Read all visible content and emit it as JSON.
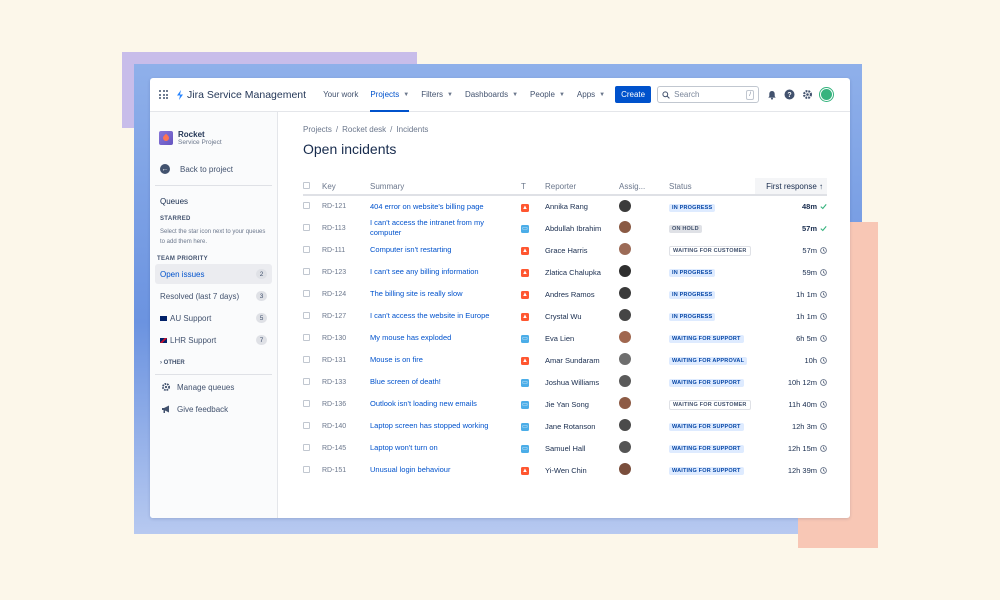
{
  "colors": {
    "accent": "#0052cc",
    "incident": "#ff5630",
    "support": "#4bade8"
  },
  "nav": {
    "product": "Jira Service Management",
    "items": [
      {
        "label": "Your work",
        "chevron": false,
        "active": false
      },
      {
        "label": "Projects",
        "chevron": true,
        "active": true
      },
      {
        "label": "Filters",
        "chevron": true,
        "active": false
      },
      {
        "label": "Dashboards",
        "chevron": true,
        "active": false
      },
      {
        "label": "People",
        "chevron": true,
        "active": false
      },
      {
        "label": "Apps",
        "chevron": true,
        "active": false
      }
    ],
    "create_label": "Create",
    "search_placeholder": "Search",
    "search_shortcut": "/"
  },
  "sidebar": {
    "project_name": "Rocket",
    "project_type": "Service Project",
    "back_label": "Back to project",
    "queues_heading": "Queues",
    "starred_heading": "STARRED",
    "starred_help": "Select the star icon next to your queues to add them here.",
    "team_heading": "TEAM PRIORITY",
    "queues": [
      {
        "label": "Open issues",
        "count": "2",
        "flag": "",
        "active": true
      },
      {
        "label": "Resolved (last 7 days)",
        "count": "3",
        "flag": "",
        "active": false
      },
      {
        "label": "AU Support",
        "count": "5",
        "flag": "au",
        "active": false
      },
      {
        "label": "LHR Support",
        "count": "7",
        "flag": "uk",
        "active": false
      }
    ],
    "other_label": "OTHER",
    "manage_label": "Manage queues",
    "feedback_label": "Give feedback"
  },
  "main": {
    "breadcrumb": [
      "Projects",
      "Rocket desk",
      "Incidents"
    ],
    "title": "Open incidents",
    "columns": {
      "key": "Key",
      "summary": "Summary",
      "type": "T",
      "reporter": "Reporter",
      "assignee": "Assig...",
      "status": "Status",
      "first_response": "First response"
    },
    "rows": [
      {
        "key": "RD-121",
        "summary": "404 error on website's billing page",
        "type": "incident",
        "reporter": "Annika Rang",
        "avatar": "#3b3b3b",
        "status": "IN PROGRESS",
        "status_kind": "inprogress",
        "time": "48m",
        "bold": true,
        "check": true
      },
      {
        "key": "RD-113",
        "summary": "I can't access the intranet from my computer",
        "type": "support",
        "reporter": "Abdullah Ibrahim",
        "avatar": "#8a5a44",
        "status": "ON HOLD",
        "status_kind": "onhold",
        "time": "57m",
        "bold": true,
        "check": true
      },
      {
        "key": "RD-111",
        "summary": "Computer isn't restarting",
        "type": "incident",
        "reporter": "Grace Harris",
        "avatar": "#9c6b57",
        "status": "WAITING FOR CUSTOMER",
        "status_kind": "customer",
        "time": "57m",
        "bold": false,
        "check": false
      },
      {
        "key": "RD-123",
        "summary": "I can't see any billing information",
        "type": "incident",
        "reporter": "Zlatica Chalupka",
        "avatar": "#2f2f2f",
        "status": "IN PROGRESS",
        "status_kind": "inprogress",
        "time": "59m",
        "bold": false,
        "check": false
      },
      {
        "key": "RD-124",
        "summary": "The billing site is really slow",
        "type": "incident",
        "reporter": "Andres Ramos",
        "avatar": "#3a3a3a",
        "status": "IN PROGRESS",
        "status_kind": "inprogress",
        "time": "1h 1m",
        "bold": false,
        "check": false
      },
      {
        "key": "RD-127",
        "summary": "I can't access the website in Europe",
        "type": "incident",
        "reporter": "Crystal Wu",
        "avatar": "#454545",
        "status": "IN PROGRESS",
        "status_kind": "inprogress",
        "time": "1h 1m",
        "bold": false,
        "check": false
      },
      {
        "key": "RD-130",
        "summary": "My mouse has exploded",
        "type": "support",
        "reporter": "Eva Lien",
        "avatar": "#a0674f",
        "status": "WAITING FOR SUPPORT",
        "status_kind": "support",
        "time": "6h 5m",
        "bold": false,
        "check": false
      },
      {
        "key": "RD-131",
        "summary": "Mouse is on fire",
        "type": "incident",
        "reporter": "Amar Sundaram",
        "avatar": "#6e6e6e",
        "status": "WAITING FOR APPROVAL",
        "status_kind": "approval",
        "time": "10h",
        "bold": false,
        "check": false
      },
      {
        "key": "RD-133",
        "summary": "Blue screen of death!",
        "type": "support",
        "reporter": "Joshua Williams",
        "avatar": "#5a5a5a",
        "status": "WAITING FOR SUPPORT",
        "status_kind": "support",
        "time": "10h 12m",
        "bold": false,
        "check": false
      },
      {
        "key": "RD-136",
        "summary": "Outlook isn't loading new emails",
        "type": "support",
        "reporter": "Jie Yan Song",
        "avatar": "#8d5b45",
        "status": "WAITING FOR CUSTOMER",
        "status_kind": "customer",
        "time": "11h 40m",
        "bold": false,
        "check": false
      },
      {
        "key": "RD-140",
        "summary": "Laptop screen has stopped working",
        "type": "support",
        "reporter": "Jane Rotanson",
        "avatar": "#4a4a4a",
        "status": "WAITING FOR SUPPORT",
        "status_kind": "support",
        "time": "12h 3m",
        "bold": false,
        "check": false
      },
      {
        "key": "RD-145",
        "summary": "Laptop won't turn on",
        "type": "support",
        "reporter": "Samuel Hall",
        "avatar": "#555555",
        "status": "WAITING FOR SUPPORT",
        "status_kind": "support",
        "time": "12h 15m",
        "bold": false,
        "check": false
      },
      {
        "key": "RD-151",
        "summary": "Unusual login behaviour",
        "type": "incident",
        "reporter": "Yi-Wen Chin",
        "avatar": "#7a4e3c",
        "status": "WAITING FOR SUPPORT",
        "status_kind": "support",
        "time": "12h 39m",
        "bold": false,
        "check": false
      }
    ]
  }
}
